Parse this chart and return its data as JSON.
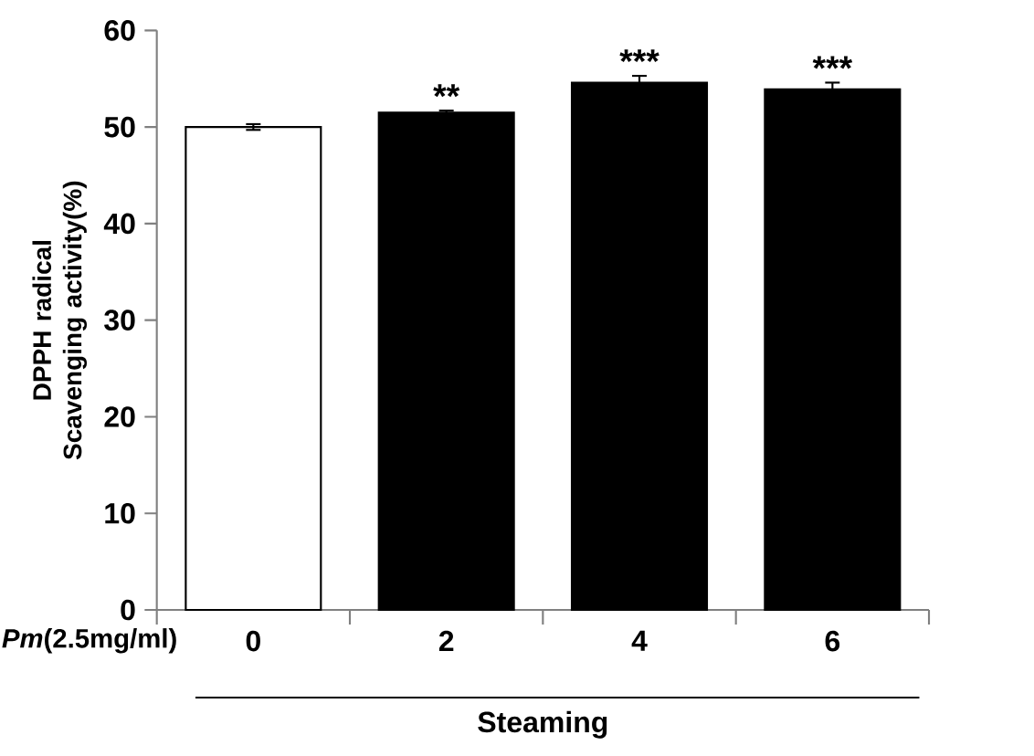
{
  "chart_data": {
    "type": "bar",
    "ylabel": "DPPH radical Scavenging activity(%)",
    "xlabel": "*Pm*(2.5mg/ml)",
    "categories": [
      "0",
      "2",
      "4",
      "6"
    ],
    "values": [
      50.0,
      51.5,
      54.6,
      53.9
    ],
    "errors": [
      0.3,
      0.2,
      0.7,
      0.7
    ],
    "colors": [
      "#ffffff",
      "#000000",
      "#000000",
      "#000000"
    ],
    "ylim": [
      0,
      60
    ],
    "yticks": [
      0,
      10,
      20,
      30,
      40,
      50,
      60
    ],
    "annotations": [
      {
        "text": "**",
        "x": "2",
        "y": 51.7
      },
      {
        "text": "***",
        "x": "4",
        "y": 55.3
      },
      {
        "text": "***",
        "x": "6",
        "y": 54.6
      },
      "Steaming"
    ]
  }
}
